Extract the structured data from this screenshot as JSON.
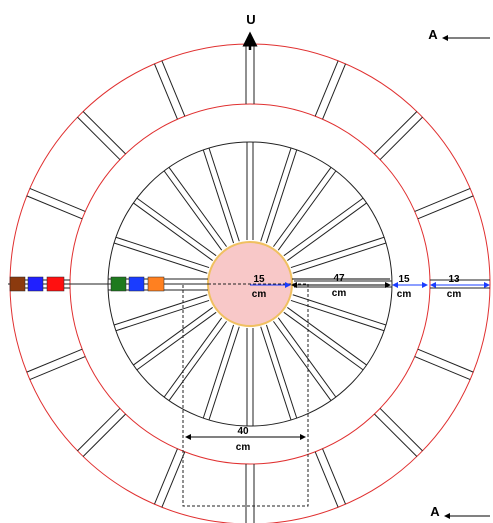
{
  "north_label": "U",
  "section_marker_top": "A",
  "section_marker_bottom": "A",
  "dimensions": [
    {
      "value": "15",
      "unit": "cm"
    },
    {
      "value": "47",
      "unit": "cm"
    },
    {
      "value": "15",
      "unit": "cm"
    },
    {
      "value": "13",
      "unit": "cm"
    },
    {
      "value": "40",
      "unit": "cm"
    }
  ],
  "colors": {
    "outer_ring": "#e03030",
    "center_fill": "#f8c8c8",
    "center_stroke": "#f0c060",
    "dimension_arrow": "#1a3cff",
    "lines": "#222222"
  },
  "outer_squares": [
    "#8b3a0e",
    "#2020ff",
    "#ff1010"
  ],
  "inner_squares": [
    "#1e7a1e",
    "#1a3cff",
    "#ff8020"
  ]
}
